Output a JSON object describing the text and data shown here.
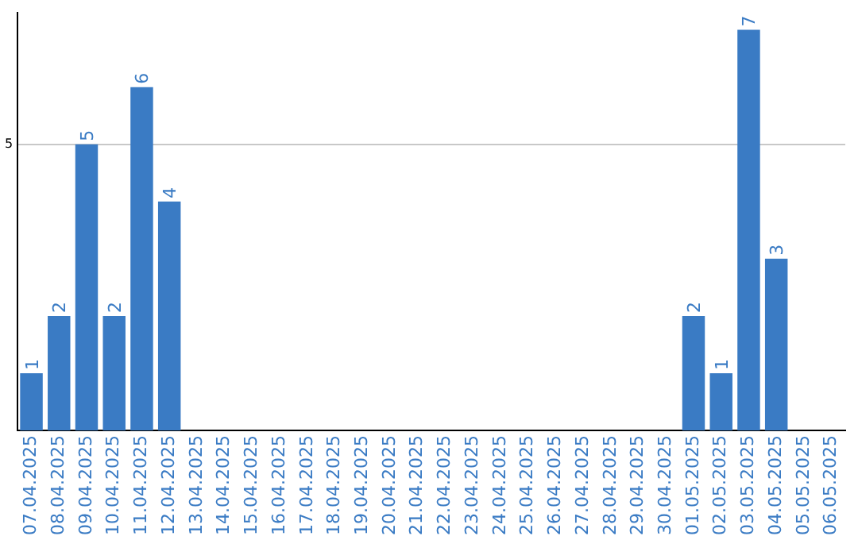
{
  "chart_data": {
    "type": "bar",
    "categories": [
      "07.04.2025",
      "08.04.2025",
      "09.04.2025",
      "10.04.2025",
      "11.04.2025",
      "12.04.2025",
      "13.04.2025",
      "14.04.2025",
      "15.04.2025",
      "16.04.2025",
      "17.04.2025",
      "18.04.2025",
      "19.04.2025",
      "20.04.2025",
      "21.04.2025",
      "22.04.2025",
      "23.04.2025",
      "24.04.2025",
      "25.04.2025",
      "26.04.2025",
      "27.04.2025",
      "28.04.2025",
      "29.04.2025",
      "30.04.2025",
      "01.05.2025",
      "02.05.2025",
      "03.05.2025",
      "04.05.2025",
      "05.05.2025",
      "06.05.2025"
    ],
    "values": [
      1,
      2,
      5,
      2,
      6,
      4,
      0,
      0,
      0,
      0,
      0,
      0,
      0,
      0,
      0,
      0,
      0,
      0,
      0,
      0,
      0,
      0,
      0,
      0,
      2,
      1,
      7,
      3,
      0,
      0
    ],
    "value_labels": [
      "1",
      "2",
      "5",
      "2",
      "6",
      "4",
      null,
      null,
      null,
      null,
      null,
      null,
      null,
      null,
      null,
      null,
      null,
      null,
      null,
      null,
      null,
      null,
      null,
      null,
      "2",
      "1",
      "7",
      "3",
      null,
      null
    ],
    "color": "#3a7bc4",
    "ylim": [
      0,
      7.3
    ],
    "yticks": [
      5
    ],
    "grid": "y",
    "legend": false
  }
}
